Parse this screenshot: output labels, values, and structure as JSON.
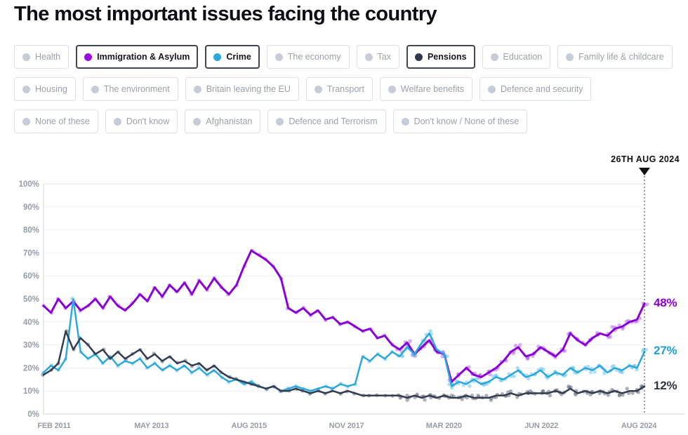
{
  "title": "The most important issues facing the country",
  "filters": {
    "inactive_dot_color": "#c6ccd8",
    "rows": [
      [
        {
          "label": "Health",
          "active": false
        },
        {
          "label": "Immigration & Asylum",
          "active": true,
          "color": "#9a0ee0"
        },
        {
          "label": "Crime",
          "active": true,
          "color": "#29a8e0"
        },
        {
          "label": "The economy",
          "active": false
        },
        {
          "label": "Tax",
          "active": false
        },
        {
          "label": "Pensions",
          "active": true,
          "color": "#2e3950"
        },
        {
          "label": "Education",
          "active": false
        },
        {
          "label": "Family life & childcare",
          "active": false
        }
      ],
      [
        {
          "label": "Housing",
          "active": false
        },
        {
          "label": "The environment",
          "active": false
        },
        {
          "label": "Britain leaving the EU",
          "active": false
        },
        {
          "label": "Transport",
          "active": false
        },
        {
          "label": "Welfare benefits",
          "active": false
        },
        {
          "label": "Defence and security",
          "active": false
        }
      ],
      [
        {
          "label": "None of these",
          "active": false
        },
        {
          "label": "Don't know",
          "active": false
        },
        {
          "label": "Afghanistan",
          "active": false
        },
        {
          "label": "Defence and Terrorism",
          "active": false
        },
        {
          "label": "Don't know / None of these",
          "active": false
        }
      ]
    ]
  },
  "chart_data": {
    "type": "line",
    "title": "The most important issues facing the country",
    "annotation": {
      "date_label": "26TH AUG 2024"
    },
    "x_start": "FEB 2011",
    "x_end": "AUG 2024",
    "sample_interval_months": 2,
    "grid": true,
    "ylim": [
      0,
      100
    ],
    "x_axis": {
      "tick_labels": [
        "FEB 2011",
        "MAY 2013",
        "AUG 2015",
        "NOV 2017",
        "MAR 2020",
        "JUN 2022",
        "AUG 2024"
      ]
    },
    "y_axis": {
      "tick_labels": [
        "0%",
        "10%",
        "20%",
        "30%",
        "40%",
        "50%",
        "60%",
        "70%",
        "80%",
        "90%",
        "100%"
      ]
    },
    "series": [
      {
        "name": "Immigration & Asylum",
        "color": "#8c00d8",
        "dot_color": "#ab5ce8",
        "label_color": "#8c00d8",
        "end_label": "48%",
        "end_value": 48,
        "values": [
          47,
          44,
          50,
          46,
          49,
          45,
          47,
          50,
          46,
          51,
          47,
          45,
          48,
          52,
          49,
          55,
          51,
          56,
          53,
          57,
          52,
          58,
          54,
          59,
          55,
          52,
          56,
          64,
          71,
          69,
          67,
          64,
          59,
          46,
          44,
          46,
          43,
          45,
          41,
          42,
          39,
          40,
          38,
          36,
          37,
          33,
          34,
          30,
          28,
          31,
          26,
          29,
          32,
          27,
          26,
          14,
          17,
          20,
          17,
          16,
          18,
          20,
          23,
          27,
          29,
          25,
          26,
          29,
          27,
          25,
          28,
          35,
          32,
          30,
          33,
          35,
          34,
          37,
          38,
          40,
          41,
          48
        ]
      },
      {
        "name": "Crime",
        "color": "#29a8e0",
        "dot_color": "#5fc0ec",
        "label_color": "#1ea0dc",
        "end_label": "27%",
        "end_value": 27,
        "values": [
          18,
          21,
          19,
          24,
          50,
          27,
          24,
          26,
          22,
          25,
          21,
          23,
          22,
          24,
          20,
          22,
          19,
          21,
          19,
          21,
          18,
          20,
          17,
          19,
          16,
          14,
          15,
          13,
          14,
          12,
          11,
          12,
          10,
          11,
          12,
          11,
          10,
          11,
          12,
          11,
          13,
          12,
          13,
          25,
          23,
          26,
          24,
          27,
          25,
          29,
          26,
          31,
          35,
          28,
          26,
          12,
          14,
          13,
          15,
          13,
          14,
          16,
          15,
          17,
          19,
          16,
          17,
          19,
          16,
          18,
          17,
          20,
          18,
          20,
          19,
          21,
          18,
          20,
          19,
          21,
          20,
          27
        ]
      },
      {
        "name": "Pensions",
        "color": "#333d50",
        "dot_color": "#5a6376",
        "label_color": "#2d3442",
        "end_label": "12%",
        "end_value": 12,
        "values": [
          17,
          19,
          22,
          36,
          28,
          33,
          30,
          26,
          28,
          24,
          27,
          24,
          26,
          28,
          24,
          26,
          23,
          25,
          22,
          23,
          21,
          22,
          19,
          21,
          18,
          16,
          15,
          14,
          13,
          12,
          11,
          12,
          10,
          10,
          11,
          10,
          9,
          10,
          9,
          10,
          9,
          10,
          9,
          8,
          8,
          8,
          8,
          8,
          8,
          7,
          8,
          7,
          8,
          7,
          8,
          7,
          7,
          8,
          7,
          7,
          7,
          8,
          8,
          9,
          8,
          9,
          9,
          9,
          9,
          10,
          9,
          11,
          9,
          10,
          9,
          10,
          9,
          10,
          9,
          10,
          10,
          12
        ]
      }
    ]
  }
}
